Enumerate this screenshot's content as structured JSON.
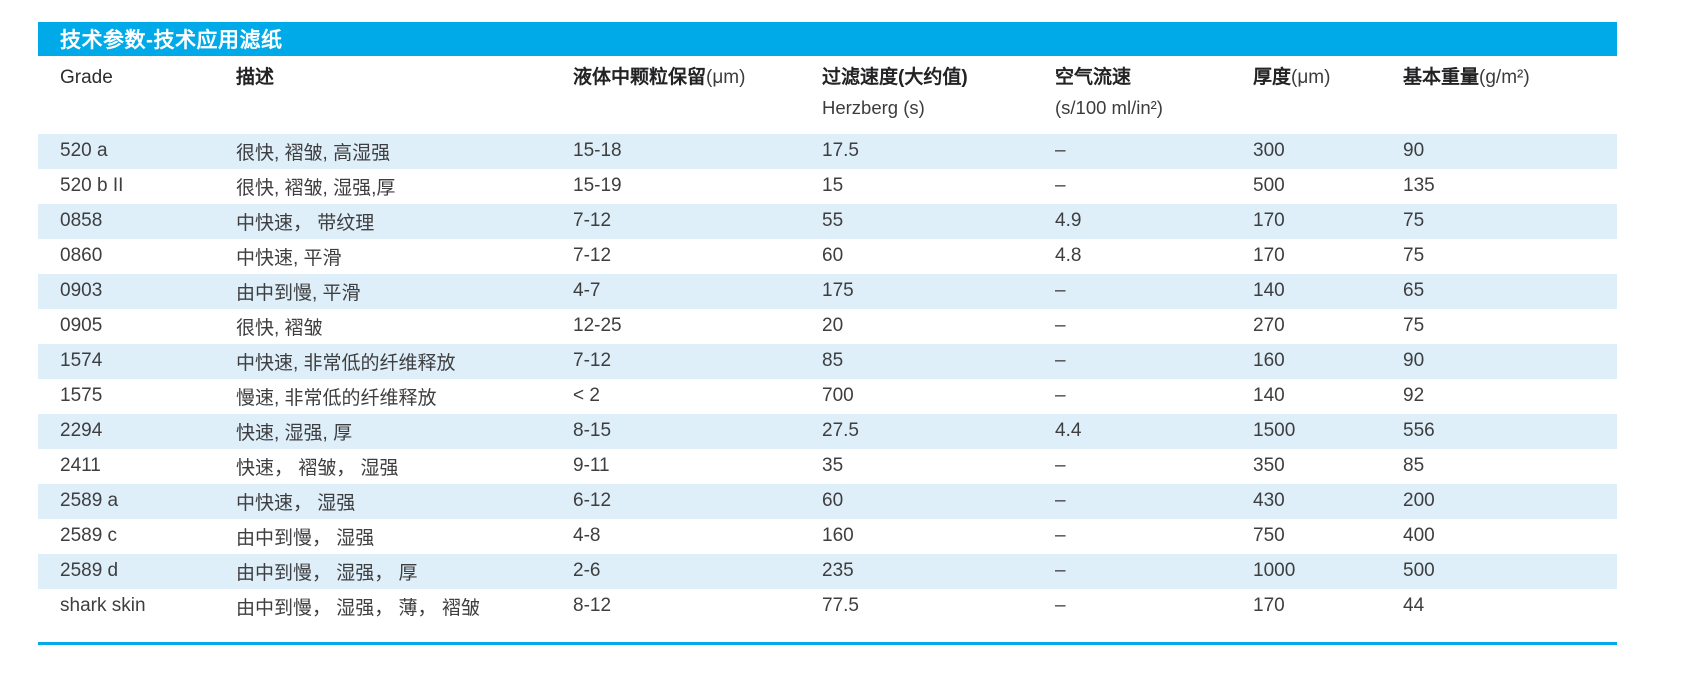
{
  "title": "技术参数-技术应用滤纸",
  "colors": {
    "accent_blue": "#00A9E8",
    "row_stripe": "#DEEFF9",
    "body_text": "#3E3E40"
  },
  "table": {
    "columns": [
      {
        "key": "grade",
        "label": "Grade",
        "unit": "",
        "line2": "",
        "bold": false
      },
      {
        "key": "description",
        "label": "描述",
        "unit": "",
        "line2": "",
        "bold": true
      },
      {
        "key": "particle-retention",
        "label": "液体中颗粒保留",
        "unit": "(μm)",
        "line2": "",
        "bold": true
      },
      {
        "key": "filtration-speed",
        "label": "过滤速度(大约值)",
        "unit": "",
        "line2": "Herzberg (s)",
        "bold": true
      },
      {
        "key": "air-flow",
        "label": "空气流速",
        "unit": "",
        "line2": "(s/100 ml/in²)",
        "bold": true
      },
      {
        "key": "thickness",
        "label": "厚度",
        "unit": "(μm)",
        "line2": "",
        "bold": true
      },
      {
        "key": "basis-weight",
        "label": "基本重量",
        "unit": "(g/m²)",
        "line2": "",
        "bold": true
      }
    ],
    "rows": [
      [
        "520 a",
        "很快, 褶皱, 高湿强",
        "15-18",
        "17.5",
        "–",
        "300",
        "90"
      ],
      [
        "520 b II",
        "很快, 褶皱, 湿强,厚",
        "15-19",
        "15",
        "–",
        "500",
        "135"
      ],
      [
        "0858",
        "中快速， 带纹理",
        "7-12",
        "55",
        "4.9",
        "170",
        "75"
      ],
      [
        "0860",
        "中快速, 平滑",
        "7-12",
        "60",
        "4.8",
        "170",
        "75"
      ],
      [
        "0903",
        "由中到慢, 平滑",
        "4-7",
        "175",
        "–",
        "140",
        "65"
      ],
      [
        "0905",
        "很快, 褶皱",
        "12-25",
        "20",
        "–",
        "270",
        "75"
      ],
      [
        "1574",
        "中快速, 非常低的纤维释放",
        "7-12",
        "85",
        "–",
        "160",
        "90"
      ],
      [
        "1575",
        "慢速, 非常低的纤维释放",
        "< 2",
        "700",
        "–",
        "140",
        "92"
      ],
      [
        "2294",
        "快速, 湿强, 厚",
        "8-15",
        "27.5",
        "4.4",
        "1500",
        "556"
      ],
      [
        "2411",
        "快速， 褶皱， 湿强",
        "9-11",
        "35",
        "–",
        "350",
        "85"
      ],
      [
        "2589 a",
        "中快速， 湿强",
        "6-12",
        "60",
        "–",
        "430",
        "200"
      ],
      [
        "2589 c",
        "由中到慢， 湿强",
        "4-8",
        "160",
        "–",
        "750",
        "400"
      ],
      [
        "2589 d",
        "由中到慢， 湿强， 厚",
        "2-6",
        "235",
        "–",
        "1000",
        "500"
      ],
      [
        "shark skin",
        "由中到慢， 湿强， 薄， 褶皱",
        "8-12",
        "77.5",
        "–",
        "170",
        "44"
      ]
    ]
  }
}
